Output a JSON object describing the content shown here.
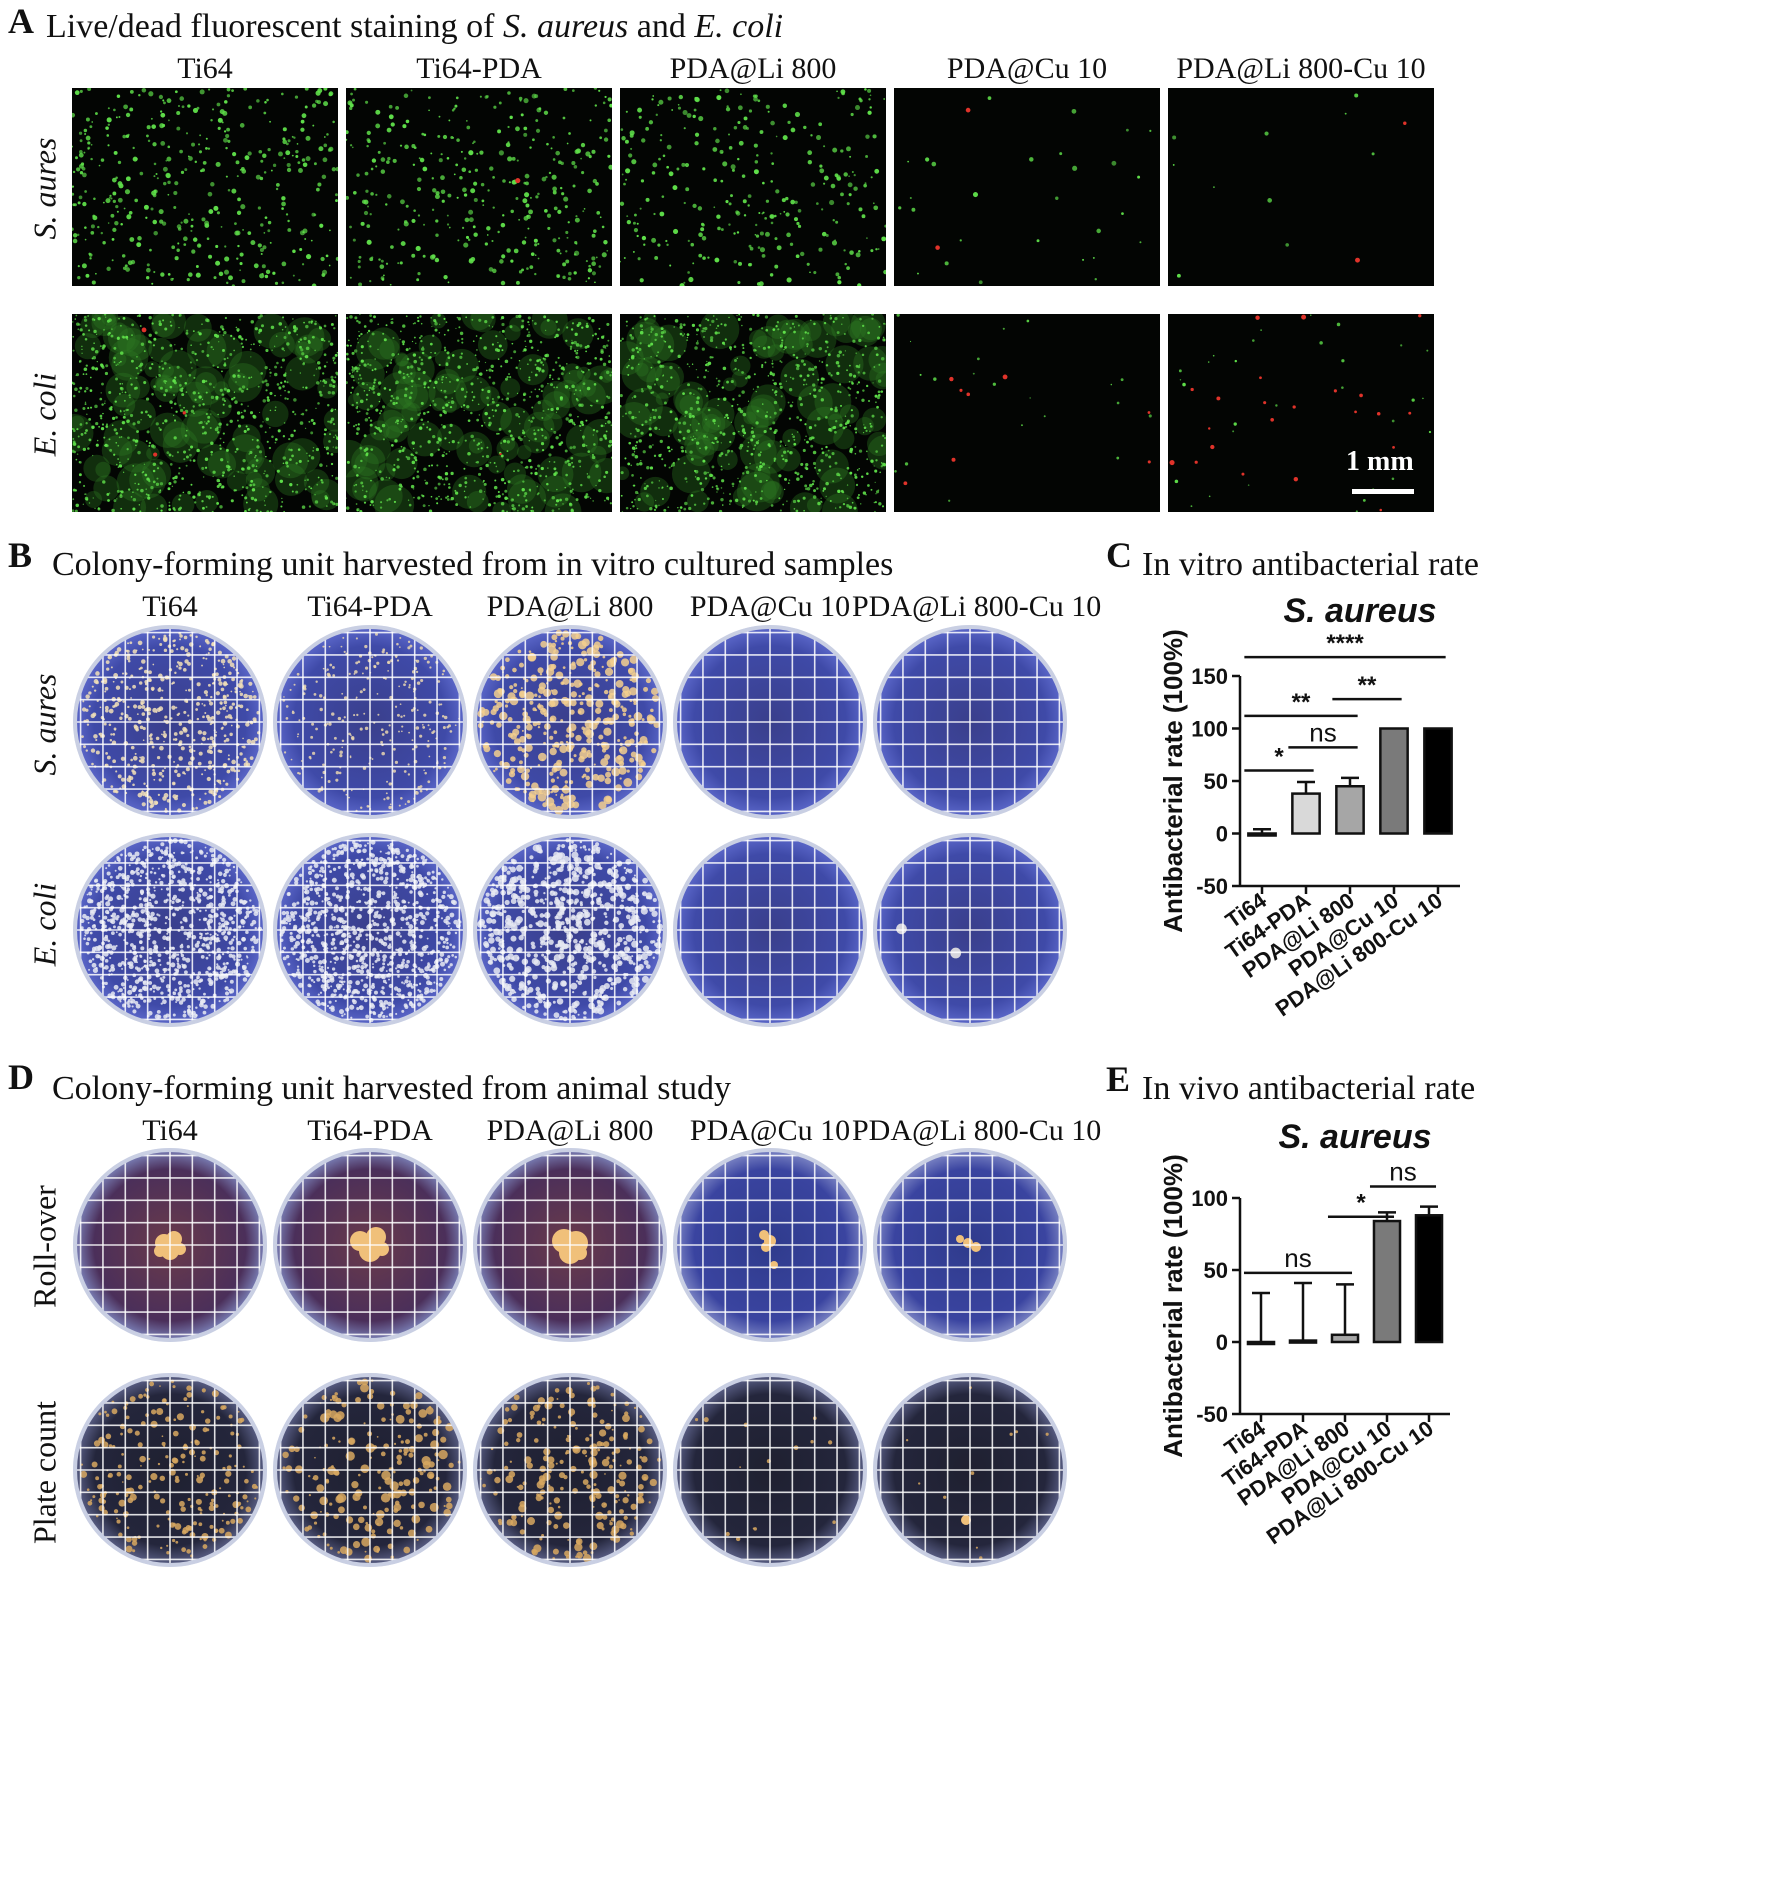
{
  "panelA": {
    "letter": "A",
    "title_plain1": "Live/dead fluorescent staining of ",
    "title_it1": "S. aureus",
    "title_plain2": " and ",
    "title_it2": "E. coli",
    "columns": [
      "Ti64",
      "Ti64-PDA",
      "PDA@Li 800",
      "PDA@Cu 10",
      "PDA@Li 800-Cu 10"
    ],
    "rows": [
      "S. aures",
      "E. coli"
    ],
    "scale_bar": "1 mm",
    "colors": {
      "live": "#5fe04a",
      "dead": "#e0332a",
      "background": "#030503"
    }
  },
  "panelB": {
    "letter": "B",
    "title": "Colony-forming unit harvested from in vitro cultured samples",
    "columns": [
      "Ti64",
      "Ti64-PDA",
      "PDA@Li 800",
      "PDA@Cu 10",
      "PDA@Li 800-Cu 10"
    ],
    "rows": [
      "S. aures",
      "E. coli"
    ]
  },
  "panelC": {
    "letter": "C",
    "title": "In vitro antibacterial rate"
  },
  "panelD": {
    "letter": "D",
    "title": "Colony-forming unit harvested from animal study",
    "columns": [
      "Ti64",
      "Ti64-PDA",
      "PDA@Li 800",
      "PDA@Cu 10",
      "PDA@Li 800-Cu 10"
    ],
    "rows": [
      "Roll-over",
      "Plate count"
    ]
  },
  "panelE": {
    "letter": "E",
    "title": "In vivo antibacterial rate"
  },
  "chart_data": [
    {
      "type": "bar",
      "title": "S. aureus",
      "ylabel": "Antibacterial rate (100%)",
      "categories": [
        "Ti64",
        "Ti64-PDA",
        "PDA@Li 800",
        "PDA@Cu 10",
        "PDA@Li 800-Cu 10"
      ],
      "values": [
        0,
        38,
        45,
        100,
        100
      ],
      "errors": [
        4,
        11,
        8,
        0,
        0
      ],
      "bar_colors": [
        "#ffffff",
        "#d9d9d9",
        "#a6a6a6",
        "#7a7a7a",
        "#000000"
      ],
      "ylim": [
        -50,
        150
      ],
      "yticks": [
        -50,
        0,
        50,
        100,
        150
      ],
      "significance": [
        {
          "from": 0,
          "to": 1,
          "label": "*"
        },
        {
          "from": 1,
          "to": 2,
          "label": "ns"
        },
        {
          "from": 0,
          "to": 2,
          "label": "**"
        },
        {
          "from": 2,
          "to": 3,
          "label": "**"
        },
        {
          "from": 0,
          "to": 4,
          "label": "****"
        }
      ]
    },
    {
      "type": "bar",
      "title": "S. aureus",
      "ylabel": "Antibacterial rate (100%)",
      "categories": [
        "Ti64",
        "Ti64-PDA",
        "PDA@Li 800",
        "PDA@Cu 10",
        "PDA@Li 800-Cu 10"
      ],
      "values": [
        0,
        1,
        5,
        84,
        88
      ],
      "errors": [
        34,
        40,
        35,
        6,
        6
      ],
      "bar_colors": [
        "#ffffff",
        "#d9d9d9",
        "#a6a6a6",
        "#7a7a7a",
        "#000000"
      ],
      "ylim": [
        -50,
        100
      ],
      "yticks": [
        -50,
        0,
        50,
        100
      ],
      "significance": [
        {
          "from": 0,
          "to": 2,
          "label": "ns"
        },
        {
          "from": 2,
          "to": 3,
          "label": "*"
        },
        {
          "from": 3,
          "to": 4,
          "label": "ns"
        }
      ]
    }
  ]
}
